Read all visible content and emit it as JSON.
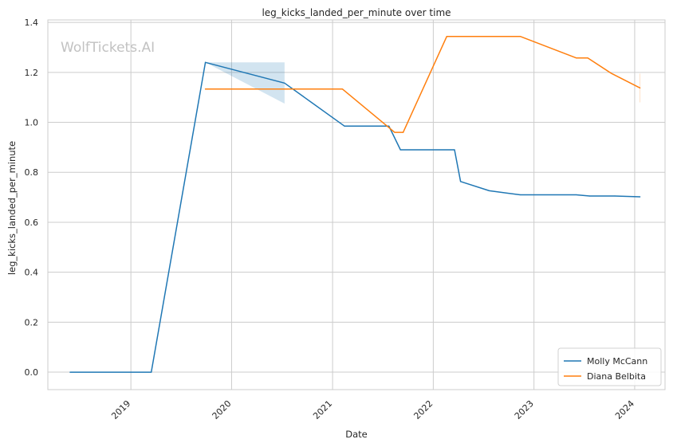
{
  "chart_data": {
    "type": "line",
    "title": "leg_kicks_landed_per_minute over time",
    "xlabel": "Date",
    "ylabel": "leg_kicks_landed_per_minute",
    "watermark": "WolfTickets.AI",
    "xlim": [
      "2018-03-06",
      "2024-04-20"
    ],
    "ylim": [
      -0.07,
      1.41
    ],
    "x_ticks": [
      "2019",
      "2020",
      "2021",
      "2022",
      "2023",
      "2024"
    ],
    "y_ticks": [
      "0.0",
      "0.2",
      "0.4",
      "0.6",
      "0.8",
      "1.0",
      "1.2",
      "1.4"
    ],
    "grid": true,
    "legend_position": "lower-right",
    "series": [
      {
        "name": "Molly McCann",
        "color": "#1f77b4",
        "points": [
          [
            "2018-05-26",
            0.0
          ],
          [
            "2019-03-16",
            0.0
          ],
          [
            "2019-09-28",
            1.24
          ],
          [
            "2020-07-11",
            1.157
          ],
          [
            "2021-02-13",
            0.985
          ],
          [
            "2021-07-24",
            0.985
          ],
          [
            "2021-09-04",
            0.89
          ],
          [
            "2022-03-19",
            0.89
          ],
          [
            "2022-04-10",
            0.763
          ],
          [
            "2022-07-23",
            0.726
          ],
          [
            "2022-11-12",
            0.71
          ],
          [
            "2023-06-03",
            0.71
          ],
          [
            "2023-07-22",
            0.705
          ],
          [
            "2023-10-21",
            0.705
          ],
          [
            "2024-01-20",
            0.702
          ]
        ],
        "band": {
          "x": [
            "2019-09-28",
            "2020-07-11"
          ],
          "upper": [
            1.24,
            1.24
          ],
          "lower": [
            1.24,
            1.075
          ]
        }
      },
      {
        "name": "Diana Belbita",
        "color": "#ff7f0e",
        "points": [
          [
            "2019-09-28",
            1.133
          ],
          [
            "2021-02-06",
            1.133
          ],
          [
            "2021-08-14",
            0.96
          ],
          [
            "2021-09-14",
            0.96
          ],
          [
            "2022-02-19",
            1.344
          ],
          [
            "2022-11-12",
            1.344
          ],
          [
            "2023-06-03",
            1.258
          ],
          [
            "2023-07-15",
            1.258
          ],
          [
            "2023-10-07",
            1.197
          ],
          [
            "2024-01-20",
            1.138
          ]
        ],
        "band": {
          "x": [
            "2024-01-20",
            "2024-01-20"
          ],
          "upper": [
            1.195,
            1.195
          ],
          "lower": [
            1.08,
            1.08
          ]
        }
      }
    ]
  }
}
